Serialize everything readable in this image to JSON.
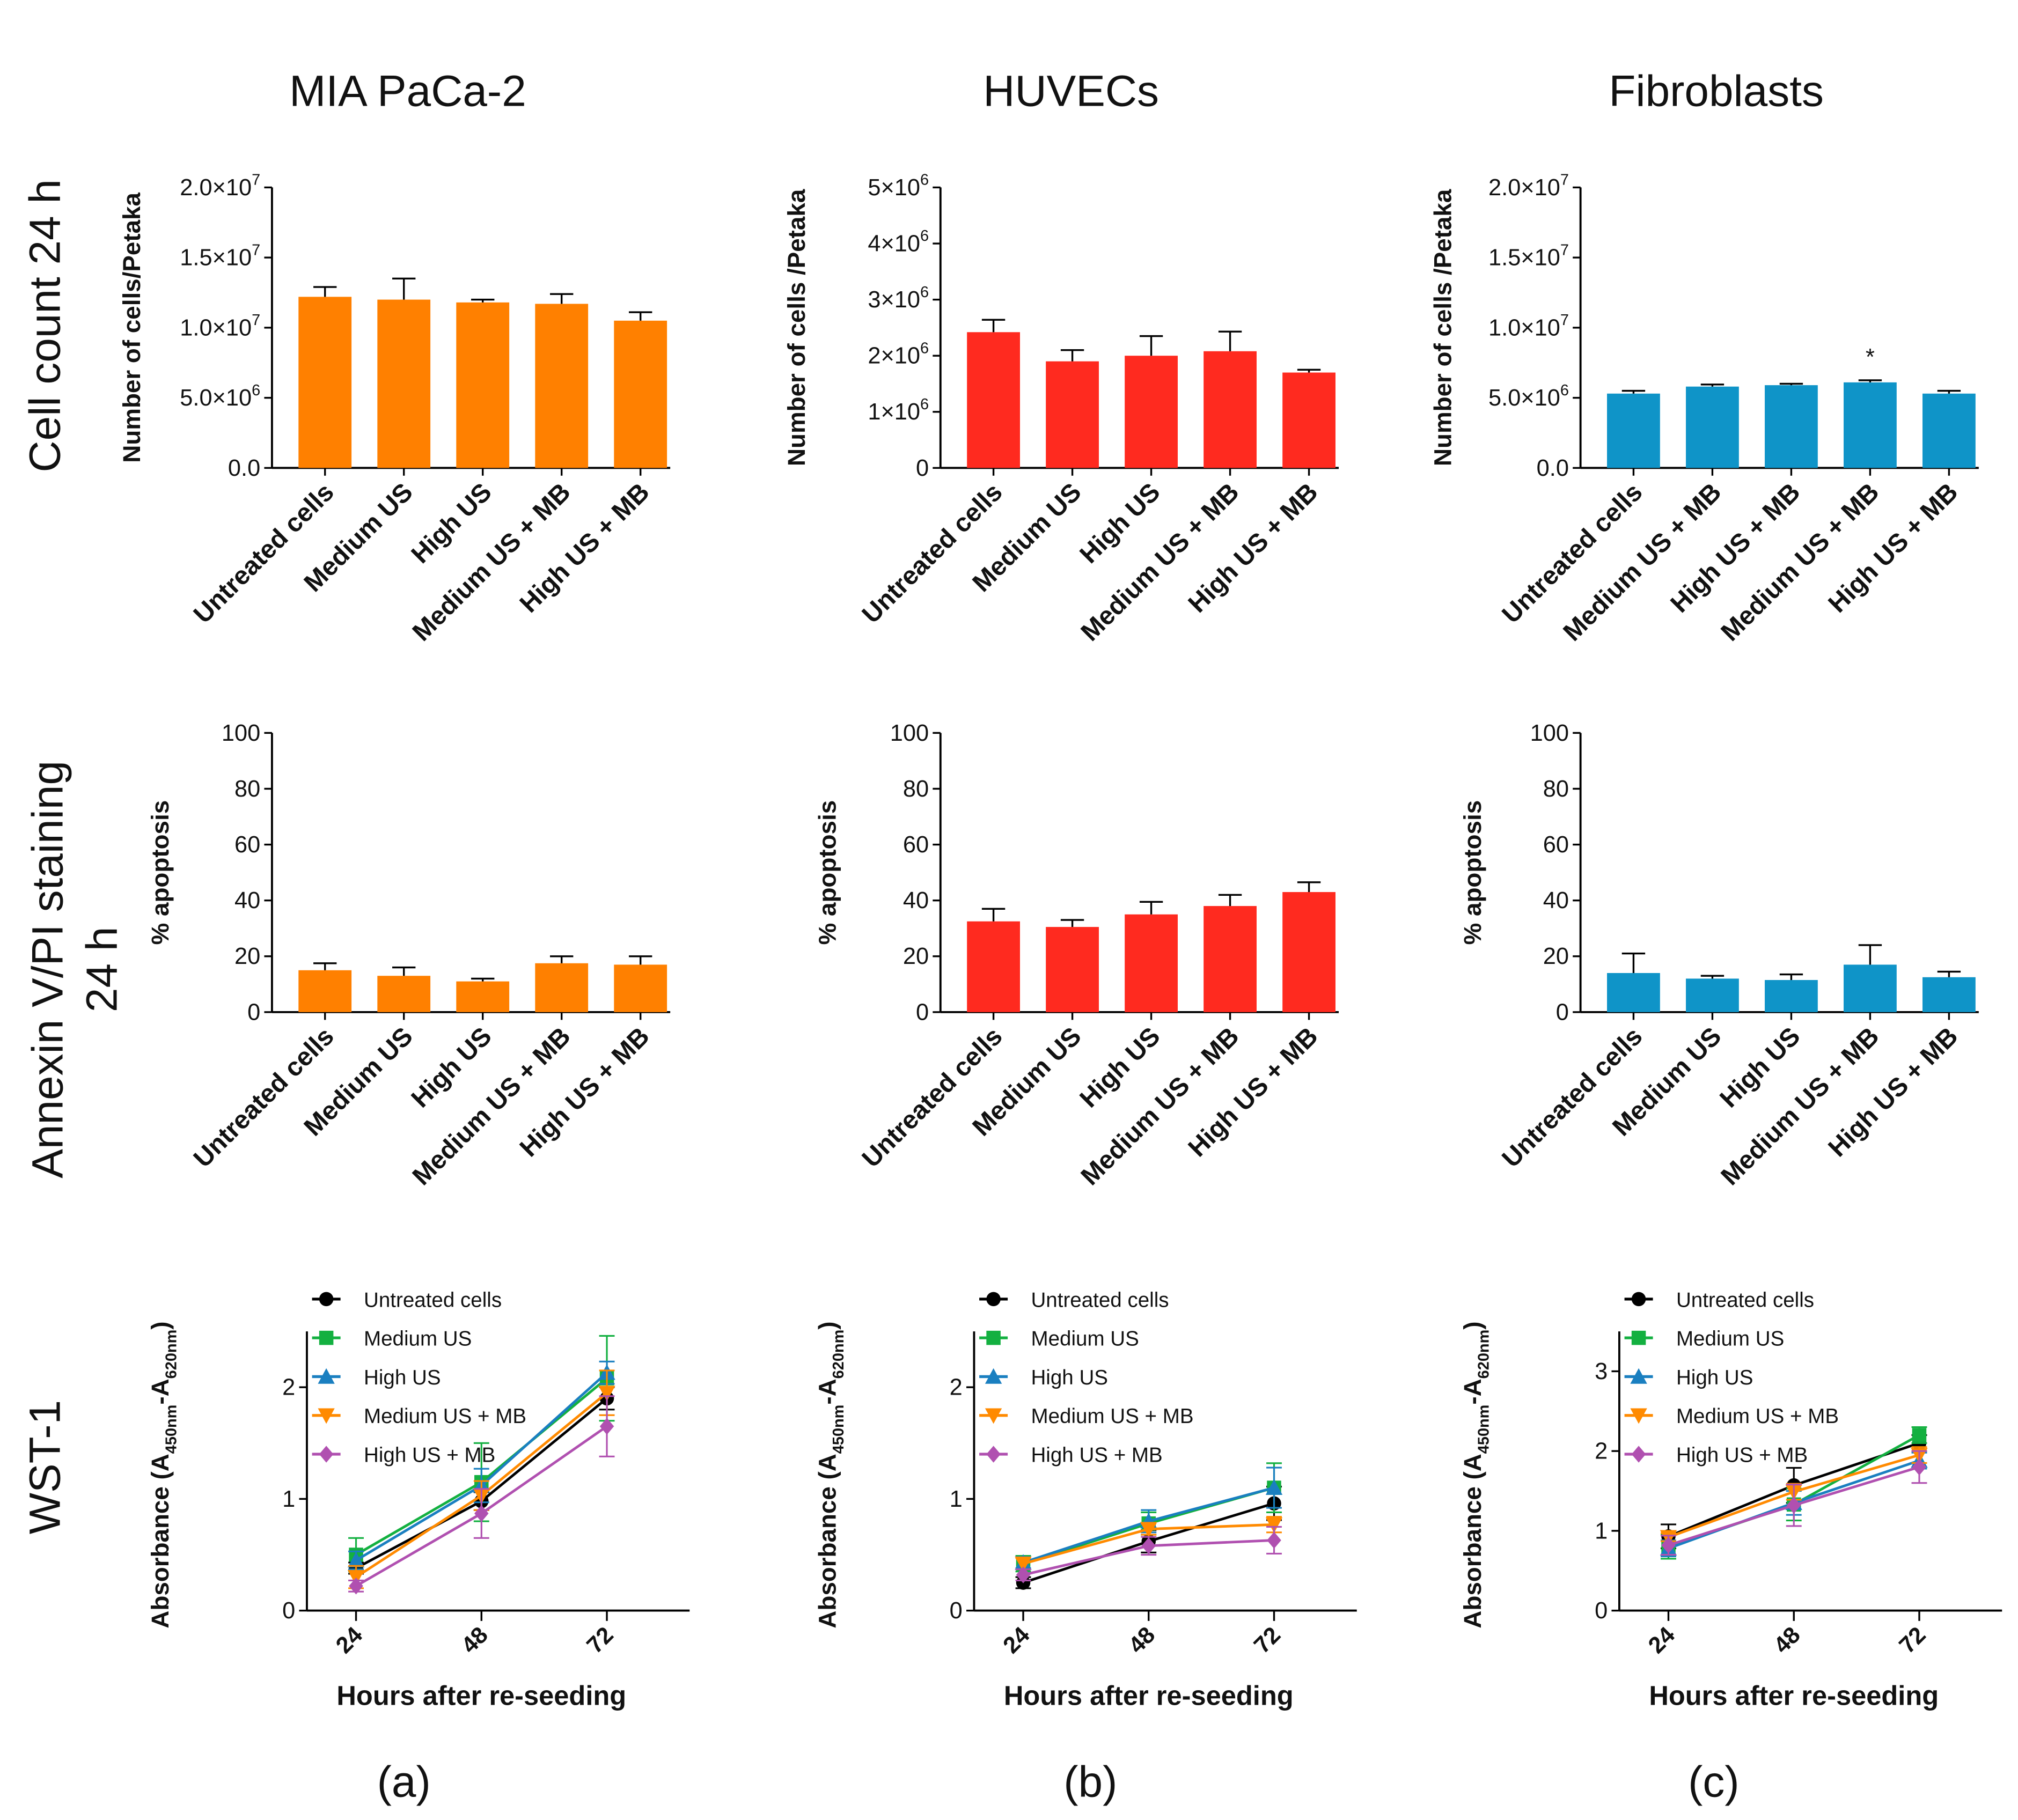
{
  "columns": [
    "MIA PaCa-2",
    "HUVECs",
    "Fibroblasts"
  ],
  "rows": {
    "cell_count": "Cell count 24 h",
    "annexin_line1": "Annexin V/PI staining",
    "annexin_line2": "24 h",
    "wst": "WST-1"
  },
  "panel_letters": [
    "(a)",
    "(b)",
    "(c)"
  ],
  "colors": {
    "orange": "#ff8000",
    "red": "#ff2a1f",
    "blue": "#0f94c8",
    "series": [
      "#000000",
      "#13b040",
      "#1a7fc0",
      "#ff8a00",
      "#b050b0"
    ]
  },
  "chart_data": [
    {
      "type": "bar",
      "ylabel": "Number of cells/Petaka",
      "ylim": [
        0,
        20000000
      ],
      "yticks": [
        {
          "v": 0,
          "base": "0.0",
          "exp": ""
        },
        {
          "v": 5000000,
          "base": "5.0×10",
          "exp": "6"
        },
        {
          "v": 10000000,
          "base": "1.0×10",
          "exp": "7"
        },
        {
          "v": 15000000,
          "base": "1.5×10",
          "exp": "7"
        },
        {
          "v": 20000000,
          "base": "2.0×10",
          "exp": "7"
        }
      ],
      "categories": [
        "Untreated cells",
        "Medium US",
        "High US",
        "Medium US + MB",
        "High US + MB"
      ],
      "values": [
        12200000,
        12000000,
        11800000,
        11700000,
        10500000
      ],
      "errors": [
        700000,
        1500000,
        200000,
        700000,
        600000
      ],
      "color": "#ff8000",
      "annotations": []
    },
    {
      "type": "bar",
      "ylabel": "Number of cells /Petaka",
      "ylim": [
        0,
        5000000
      ],
      "yticks": [
        {
          "v": 0,
          "base": "0",
          "exp": ""
        },
        {
          "v": 1000000,
          "base": "1×10",
          "exp": "6"
        },
        {
          "v": 2000000,
          "base": "2×10",
          "exp": "6"
        },
        {
          "v": 3000000,
          "base": "3×10",
          "exp": "6"
        },
        {
          "v": 4000000,
          "base": "4×10",
          "exp": "6"
        },
        {
          "v": 5000000,
          "base": "5×10",
          "exp": "6"
        }
      ],
      "categories": [
        "Untreated cells",
        "Medium US",
        "High US",
        "Medium US + MB",
        "High US + MB"
      ],
      "values": [
        2420000,
        1900000,
        2000000,
        2080000,
        1700000
      ],
      "errors": [
        220000,
        200000,
        350000,
        350000,
        50000
      ],
      "color": "#ff2a1f",
      "annotations": []
    },
    {
      "type": "bar",
      "ylabel": "Number of cells /Petaka",
      "ylim": [
        0,
        20000000
      ],
      "yticks": [
        {
          "v": 0,
          "base": "0.0",
          "exp": ""
        },
        {
          "v": 5000000,
          "base": "5.0×10",
          "exp": "6"
        },
        {
          "v": 10000000,
          "base": "1.0×10",
          "exp": "7"
        },
        {
          "v": 15000000,
          "base": "1.5×10",
          "exp": "7"
        },
        {
          "v": 20000000,
          "base": "2.0×10",
          "exp": "7"
        }
      ],
      "categories": [
        "Untreated cells",
        "Medium US + MB",
        "High US + MB",
        "Medium US + MB",
        "High US + MB"
      ],
      "values": [
        5300000,
        5800000,
        5900000,
        6100000,
        5300000
      ],
      "errors": [
        200000,
        150000,
        100000,
        150000,
        200000
      ],
      "color": "#0f94c8",
      "annotations": [
        {
          "index": 3,
          "text": "*"
        }
      ]
    },
    {
      "type": "bar",
      "ylabel": "% apoptosis",
      "ylim": [
        0,
        100
      ],
      "yticks": [
        {
          "v": 0,
          "base": "0",
          "exp": ""
        },
        {
          "v": 20,
          "base": "20",
          "exp": ""
        },
        {
          "v": 40,
          "base": "40",
          "exp": ""
        },
        {
          "v": 60,
          "base": "60",
          "exp": ""
        },
        {
          "v": 80,
          "base": "80",
          "exp": ""
        },
        {
          "v": 100,
          "base": "100",
          "exp": ""
        }
      ],
      "categories": [
        "Untreated cells",
        "Medium US",
        "High US",
        "Medium US + MB",
        "High US + MB"
      ],
      "values": [
        15,
        13,
        11,
        17.5,
        17
      ],
      "errors": [
        2.5,
        3,
        1,
        2.5,
        3
      ],
      "color": "#ff8000",
      "annotations": []
    },
    {
      "type": "bar",
      "ylabel": "% apoptosis",
      "ylim": [
        0,
        100
      ],
      "yticks": [
        {
          "v": 0,
          "base": "0",
          "exp": ""
        },
        {
          "v": 20,
          "base": "20",
          "exp": ""
        },
        {
          "v": 40,
          "base": "40",
          "exp": ""
        },
        {
          "v": 60,
          "base": "60",
          "exp": ""
        },
        {
          "v": 80,
          "base": "80",
          "exp": ""
        },
        {
          "v": 100,
          "base": "100",
          "exp": ""
        }
      ],
      "categories": [
        "Untreated cells",
        "Medium US",
        "High US",
        "Medium US + MB",
        "High US + MB"
      ],
      "values": [
        32.5,
        30.5,
        35,
        38,
        43
      ],
      "errors": [
        4.5,
        2.5,
        4.5,
        4,
        3.5
      ],
      "color": "#ff2a1f",
      "annotations": []
    },
    {
      "type": "bar",
      "ylabel": "% apoptosis",
      "ylim": [
        0,
        100
      ],
      "yticks": [
        {
          "v": 0,
          "base": "0",
          "exp": ""
        },
        {
          "v": 20,
          "base": "20",
          "exp": ""
        },
        {
          "v": 40,
          "base": "40",
          "exp": ""
        },
        {
          "v": 60,
          "base": "60",
          "exp": ""
        },
        {
          "v": 80,
          "base": "80",
          "exp": ""
        },
        {
          "v": 100,
          "base": "100",
          "exp": ""
        }
      ],
      "categories": [
        "Untreated cells",
        "Medium US",
        "High US",
        "Medium US + MB",
        "High US + MB"
      ],
      "values": [
        14,
        12,
        11.5,
        17,
        12.5
      ],
      "errors": [
        7,
        1,
        2,
        7,
        2
      ],
      "color": "#0f94c8",
      "annotations": []
    },
    {
      "type": "line",
      "ylabel": {
        "main": "Absorbance (A",
        "s1": "450nm",
        "mid": "-A",
        "s2": "620nm",
        "end": ")"
      },
      "xlabel": "Hours after re-seeding",
      "x": [
        "24",
        "48",
        "72"
      ],
      "ylim": [
        0,
        2.5
      ],
      "yticks": [
        {
          "v": 0,
          "base": "0",
          "exp": ""
        },
        {
          "v": 1,
          "base": "1",
          "exp": ""
        },
        {
          "v": 2,
          "base": "2",
          "exp": ""
        }
      ],
      "series": [
        {
          "name": "Untreated cells",
          "marker": "circle",
          "values": [
            0.38,
            0.98,
            1.9
          ],
          "errors": [
            0.05,
            0.08,
            0.1
          ]
        },
        {
          "name": "Medium US",
          "marker": "square",
          "values": [
            0.5,
            1.15,
            2.08
          ],
          "errors": [
            0.15,
            0.35,
            0.38
          ]
        },
        {
          "name": "High US",
          "marker": "triangle",
          "values": [
            0.45,
            1.12,
            2.13
          ],
          "errors": [
            0.08,
            0.15,
            0.1
          ]
        },
        {
          "name": "Medium US + MB",
          "marker": "triangle-down",
          "values": [
            0.3,
            1.03,
            1.95
          ],
          "errors": [
            0.1,
            0.13,
            0.2
          ]
        },
        {
          "name": "High US + MB",
          "marker": "diamond",
          "values": [
            0.22,
            0.87,
            1.65
          ],
          "errors": [
            0.05,
            0.22,
            0.27
          ]
        }
      ]
    },
    {
      "type": "line",
      "ylabel": {
        "main": "Absorbance (A",
        "s1": "450nm",
        "mid": "-A",
        "s2": "620nm",
        "end": ")"
      },
      "xlabel": "Hours after re-seeding",
      "x": [
        "24",
        "48",
        "72"
      ],
      "ylim": [
        0,
        2.5
      ],
      "yticks": [
        {
          "v": 0,
          "base": "0",
          "exp": ""
        },
        {
          "v": 1,
          "base": "1",
          "exp": ""
        },
        {
          "v": 2,
          "base": "2",
          "exp": ""
        }
      ],
      "series": [
        {
          "name": "Untreated cells",
          "marker": "circle",
          "values": [
            0.25,
            0.62,
            0.96
          ],
          "errors": [
            0.05,
            0.1,
            0.15
          ]
        },
        {
          "name": "Medium US",
          "marker": "square",
          "values": [
            0.42,
            0.78,
            1.1
          ],
          "errors": [
            0.07,
            0.1,
            0.22
          ]
        },
        {
          "name": "High US",
          "marker": "triangle",
          "values": [
            0.43,
            0.8,
            1.1
          ],
          "errors": [
            0.05,
            0.1,
            0.18
          ]
        },
        {
          "name": "Medium US + MB",
          "marker": "triangle-down",
          "values": [
            0.42,
            0.73,
            0.77
          ],
          "errors": [
            0.05,
            0.05,
            0.07
          ]
        },
        {
          "name": "High US + MB",
          "marker": "diamond",
          "values": [
            0.32,
            0.58,
            0.63
          ],
          "errors": [
            0.05,
            0.08,
            0.12
          ]
        }
      ]
    },
    {
      "type": "line",
      "ylabel": {
        "main": "Absorbance (A",
        "s1": "450nm",
        "mid": "-A",
        "s2": "620nm",
        "end": ")"
      },
      "xlabel": "Hours after re-seeding",
      "x": [
        "24",
        "48",
        "72"
      ],
      "ylim": [
        0,
        3.5
      ],
      "yticks": [
        {
          "v": 0,
          "base": "0",
          "exp": ""
        },
        {
          "v": 1,
          "base": "1",
          "exp": ""
        },
        {
          "v": 2,
          "base": "2",
          "exp": ""
        },
        {
          "v": 3,
          "base": "3",
          "exp": ""
        }
      ],
      "series": [
        {
          "name": "Untreated cells",
          "marker": "circle",
          "values": [
            0.93,
            1.57,
            2.1
          ],
          "errors": [
            0.15,
            0.22,
            0.1
          ]
        },
        {
          "name": "Medium US",
          "marker": "square",
          "values": [
            0.8,
            1.33,
            2.2
          ],
          "errors": [
            0.15,
            0.2,
            0.1
          ]
        },
        {
          "name": "High US",
          "marker": "triangle",
          "values": [
            0.78,
            1.35,
            1.88
          ],
          "errors": [
            0.1,
            0.15,
            0.1
          ]
        },
        {
          "name": "Medium US + MB",
          "marker": "triangle-down",
          "values": [
            0.92,
            1.49,
            1.95
          ],
          "errors": [
            0.05,
            0.1,
            0.1
          ]
        },
        {
          "name": "High US + MB",
          "marker": "diamond",
          "values": [
            0.82,
            1.32,
            1.8
          ],
          "errors": [
            0.12,
            0.26,
            0.2
          ]
        }
      ]
    }
  ]
}
